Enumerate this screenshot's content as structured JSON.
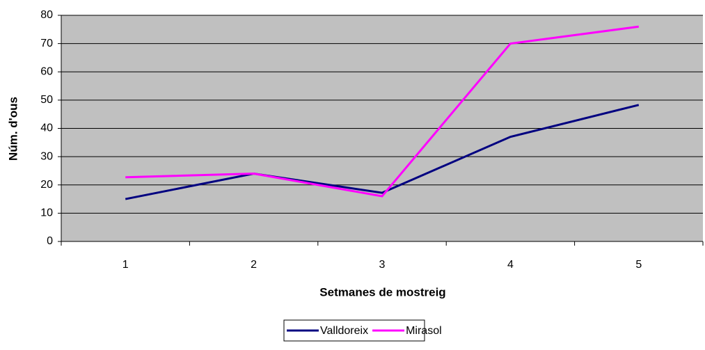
{
  "chart_data": {
    "type": "line",
    "xlabel": "Setmanes de mostreig",
    "ylabel": "Núm. d'ous",
    "categories": [
      1,
      2,
      3,
      4,
      5
    ],
    "series": [
      {
        "name": "Valldoreix",
        "color": "#000080",
        "values": [
          15,
          24,
          17.2,
          37,
          48.3
        ]
      },
      {
        "name": "Mirasol",
        "color": "#ff00ff",
        "values": [
          22.7,
          24,
          16,
          70,
          76
        ]
      }
    ],
    "ylim": [
      0,
      80
    ],
    "yticks": [
      0,
      10,
      20,
      30,
      40,
      50,
      60,
      70,
      80
    ],
    "grid": true,
    "legend": "bottom"
  }
}
